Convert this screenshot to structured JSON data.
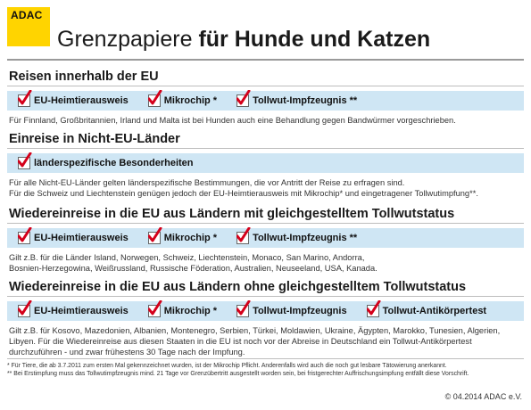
{
  "brand": {
    "logo_text": "ADAC"
  },
  "header": {
    "title_light": "Grenzpapiere ",
    "title_bold": "für Hunde und Katzen"
  },
  "sections": [
    {
      "heading": "Reisen innerhalb der EU",
      "chips": [
        "EU-Heimtierausweis",
        "Mikrochip *",
        "Tollwut-Impfzeugnis **"
      ],
      "lines": [
        "Für Finnland, Großbritannien, Irland und Malta ist bei Hunden auch eine Behandlung gegen Bandwürmer vorgeschrieben."
      ]
    },
    {
      "heading": "Einreise in Nicht-EU-Länder",
      "chips": [
        "länderspezifische Besonderheiten"
      ],
      "lines": [
        "Für alle Nicht-EU-Länder gelten länderspezifische Bestimmungen, die vor Antritt der Reise zu erfragen sind.",
        "Für die Schweiz und Liechtenstein genügen jedoch der EU-Heimtierausweis mit Mikrochip* und eingetragener Tollwutimpfung**."
      ]
    },
    {
      "heading": "Wiedereinreise in die EU aus Ländern mit gleichgestelltem Tollwutstatus",
      "chips": [
        "EU-Heimtierausweis",
        "Mikrochip *",
        "Tollwut-Impfzeugnis **"
      ],
      "lines": [
        "Gilt z.B. für die Länder Island, Norwegen, Schweiz, Liechtenstein, Monaco, San Marino, Andorra,",
        "Bosnien-Herzegowina, Weißrussland, Russische Föderation, Australien, Neuseeland, USA, Kanada."
      ]
    },
    {
      "heading": "Wiedereinreise in die EU aus Ländern ohne gleichgestelltem Tollwutstatus",
      "chips": [
        "EU-Heimtierausweis",
        "Mikrochip *",
        "Tollwut-Impfzeugnis",
        "Tollwut-Antikörpertest"
      ],
      "lines": [
        "Gilt z.B. für Kosovo, Mazedonien, Albanien, Montenegro, Serbien, Türkei, Moldawien, Ukraine, Ägypten, Marokko, Tunesien, Algerien,",
        "Libyen. Für die Wiedereinreise aus diesen Staaten in die EU ist noch vor der Abreise in Deutschland ein Tollwut-Antikörpertest",
        "durchzuführen - und zwar frühestens 30 Tage nach der Impfung."
      ]
    }
  ],
  "footnotes": [
    "*  Für Tiere, die ab 3.7.2011 zum ersten Mal gekennzeichnet wurden, ist der Mikrochip Pflicht.  Anderenfalls wird auch die noch gut lesbare Tätowierung anerkannt.",
    "** Bei Erstimpfung muss das Tollwutimpfzeugnis mind. 21 Tage vor Grenzübertritt ausgestellt worden sein, bei fristgerechter Auffrischungsimpfung entfällt diese Vorschrift."
  ],
  "copyright": "© 04.2014  ADAC e.V.",
  "colors": {
    "brand_yellow": "#ffd400",
    "strip_blue": "#cfe6f4",
    "check_red": "#d4001a"
  },
  "icons": {
    "chip_marker": "checkbox-check-icon"
  }
}
